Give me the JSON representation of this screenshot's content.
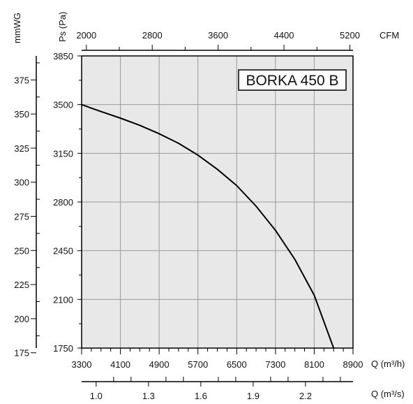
{
  "chart_data": {
    "type": "line",
    "title": "BORKA 450 B",
    "x": [
      3300,
      3700,
      4100,
      4500,
      4900,
      5300,
      5700,
      6100,
      6500,
      6900,
      7300,
      7700,
      8100,
      8500
    ],
    "series": [
      {
        "values": [
          3500,
          3450,
          3403,
          3351,
          3291,
          3222,
          3137,
          3035,
          2918,
          2770,
          2596,
          2388,
          2130,
          1750
        ]
      }
    ],
    "axes": {
      "bottom": {
        "label": "Q (m³/h)",
        "ticks": [
          "3300",
          "4100",
          "4900",
          "5700",
          "6500",
          "7300",
          "8100",
          "8900"
        ],
        "range": [
          3300,
          8900
        ]
      },
      "bottom2": {
        "label": "Q (m³/s)",
        "ticks": [
          "1.0",
          "1.3",
          "1.6",
          "1.9",
          "2.2"
        ]
      },
      "top": {
        "label": "CFM",
        "ticks": [
          "2000",
          "2800",
          "3600",
          "4400",
          "5200"
        ]
      },
      "left_inner": {
        "label": "Ps (Pa)",
        "ticks": [
          "1750",
          "2100",
          "2450",
          "2800",
          "3150",
          "3500",
          "3850"
        ],
        "range": [
          1750,
          3850
        ]
      },
      "left_outer": {
        "label": "mmWG",
        "ticks": [
          "175",
          "200",
          "225",
          "250",
          "275",
          "300",
          "325",
          "350",
          "375"
        ]
      }
    },
    "grid": true,
    "colors": {
      "plot_background": "#e8e8e8",
      "grid": "#9a9a9a",
      "curve": "#000000",
      "axis": "#000000"
    }
  }
}
